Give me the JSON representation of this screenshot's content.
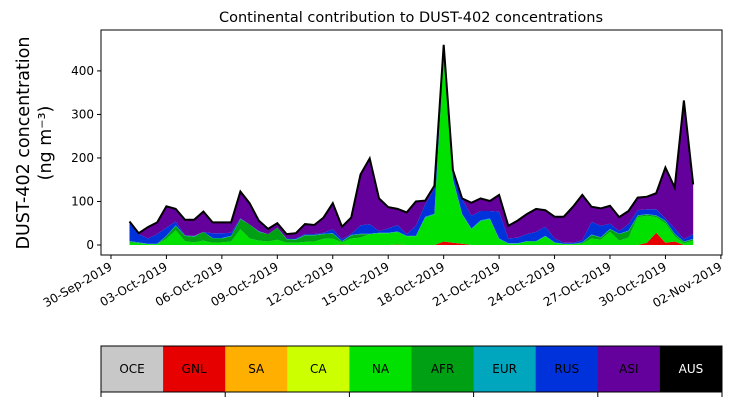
{
  "chart_data": {
    "type": "area",
    "stacked": true,
    "title": "Continental contribution to DUST-402 concentrations",
    "ylabel_line1": "DUST-402 concentration",
    "ylabel_line2": "(ng m⁻³)",
    "xlabel": "",
    "x_start_date": "01-Oct-2019 00:00",
    "x_step_hours": 12,
    "xlim_days_from_30sep": [
      -0.54,
      33.06
    ],
    "ylim": [
      -23,
      494
    ],
    "yticks": [
      0,
      100,
      200,
      300,
      400
    ],
    "xticks": [
      {
        "day": 0,
        "label": "30-Sep-2019"
      },
      {
        "day": 3,
        "label": "03-Oct-2019"
      },
      {
        "day": 6,
        "label": "06-Oct-2019"
      },
      {
        "day": 9,
        "label": "09-Oct-2019"
      },
      {
        "day": 12,
        "label": "12-Oct-2019"
      },
      {
        "day": 15,
        "label": "15-Oct-2019"
      },
      {
        "day": 18,
        "label": "18-Oct-2019"
      },
      {
        "day": 21,
        "label": "21-Oct-2019"
      },
      {
        "day": 24,
        "label": "24-Oct-2019"
      },
      {
        "day": 27,
        "label": "27-Oct-2019"
      },
      {
        "day": 30,
        "label": "30-Oct-2019"
      },
      {
        "day": 33,
        "label": "02-Nov-2019"
      }
    ],
    "series": [
      {
        "name": "OCE",
        "color": "#c8c8c8",
        "label_color": "#000000",
        "values": [
          0,
          0,
          0,
          0,
          0,
          0,
          0,
          0,
          0,
          0,
          0,
          0,
          0,
          0,
          0,
          0,
          0,
          0,
          0,
          0,
          0,
          0,
          0,
          0,
          0,
          0,
          0,
          0,
          0,
          0,
          0,
          0,
          0,
          0,
          0,
          0,
          0,
          0,
          0,
          0,
          0,
          0,
          0,
          0,
          0,
          0,
          0,
          0,
          0,
          0,
          0,
          0,
          0,
          0,
          0,
          0,
          0,
          0,
          0,
          0,
          0,
          0
        ]
      },
      {
        "name": "GNL",
        "color": "#e60000",
        "label_color": "#000000",
        "values": [
          0,
          0,
          0,
          0,
          0,
          0,
          0,
          0,
          0,
          0,
          0,
          0,
          0,
          0,
          0,
          0,
          0,
          0,
          0,
          0,
          0,
          0,
          0,
          1,
          0,
          0,
          0,
          0,
          0,
          1,
          0,
          0,
          0,
          0,
          8,
          5,
          3,
          0,
          0,
          0,
          0,
          0,
          0,
          0,
          0,
          0,
          0,
          0,
          0,
          0,
          0,
          0,
          0,
          0,
          0,
          0,
          5,
          28,
          5,
          8,
          0,
          0
        ]
      },
      {
        "name": "SA",
        "color": "#ffaf00",
        "label_color": "#000000",
        "values": [
          0,
          0,
          0,
          0,
          0,
          0,
          0,
          0,
          0,
          0,
          0,
          0,
          0,
          0,
          0,
          0,
          0,
          0,
          0,
          0,
          0,
          0,
          0,
          0,
          0,
          0,
          0,
          0,
          0,
          0,
          0,
          0,
          0,
          0,
          0,
          0,
          0,
          0,
          0,
          0,
          0,
          0,
          0,
          0,
          0,
          0,
          0,
          0,
          0,
          0,
          0,
          0,
          0,
          0,
          0,
          0,
          0,
          0,
          0,
          0,
          0,
          0
        ]
      },
      {
        "name": "CA",
        "color": "#ccff00",
        "label_color": "#000000",
        "values": [
          0,
          0,
          0,
          0,
          0,
          0,
          0,
          0,
          0,
          0,
          0,
          0,
          0,
          0,
          0,
          0,
          0,
          0,
          0,
          0,
          0,
          0,
          0,
          0,
          0,
          0,
          0,
          0,
          0,
          0,
          0,
          0,
          0,
          0,
          0,
          0,
          0,
          0,
          0,
          0,
          0,
          0,
          0,
          0,
          0,
          0,
          0,
          0,
          0,
          0,
          0,
          0,
          0,
          0,
          0,
          0,
          0,
          0,
          0,
          0,
          0,
          0
        ]
      },
      {
        "name": "NA",
        "color": "#00e100",
        "label_color": "#000000",
        "values": [
          6,
          4,
          2,
          2,
          14,
          34,
          9,
          6,
          10,
          5,
          6,
          8,
          36,
          15,
          10,
          8,
          12,
          5,
          5,
          7,
          8,
          14,
          15,
          5,
          15,
          17,
          25,
          27,
          27,
          29,
          20,
          20,
          63,
          70,
          432,
          145,
          67,
          36,
          55,
          59,
          13,
          3,
          3,
          8,
          8,
          20,
          5,
          2,
          2,
          3,
          15,
          12,
          30,
          10,
          17,
          64,
          62,
          36,
          45,
          12,
          4,
          10
        ]
      },
      {
        "name": "AFR",
        "color": "#00a014",
        "label_color": "#000000",
        "values": [
          2,
          1,
          0,
          0,
          6,
          10,
          12,
          13,
          20,
          10,
          9,
          12,
          23,
          32,
          20,
          17,
          28,
          8,
          7,
          15,
          14,
          11,
          11,
          2,
          7,
          8,
          0,
          0,
          0,
          0,
          0,
          0,
          0,
          0,
          0,
          0,
          0,
          0,
          0,
          0,
          0,
          0,
          0,
          0,
          0,
          0,
          0,
          0,
          0,
          2,
          8,
          5,
          6,
          15,
          15,
          3,
          3,
          3,
          5,
          5,
          3,
          3
        ]
      },
      {
        "name": "EUR",
        "color": "#00a5be",
        "label_color": "#000000",
        "values": [
          1,
          1,
          1,
          1,
          1,
          1,
          1,
          1,
          0,
          1,
          1,
          1,
          1,
          0,
          1,
          0,
          0,
          1,
          1,
          1,
          1,
          1,
          1,
          1,
          1,
          1,
          1,
          1,
          1,
          1,
          1,
          1,
          2,
          2,
          2,
          2,
          2,
          2,
          2,
          2,
          2,
          1,
          1,
          1,
          1,
          1,
          1,
          1,
          1,
          1,
          1,
          1,
          1,
          1,
          1,
          1,
          1,
          1,
          1,
          1,
          1,
          1
        ]
      },
      {
        "name": "RUS",
        "color": "#0032dc",
        "label_color": "#000000",
        "values": [
          45,
          19,
          12,
          22,
          19,
          9,
          0,
          1,
          0,
          11,
          11,
          7,
          1,
          0,
          1,
          0,
          0,
          1,
          2,
          2,
          2,
          2,
          9,
          4,
          2,
          19,
          22,
          4,
          10,
          15,
          4,
          23,
          28,
          58,
          8,
          13,
          33,
          29,
          21,
          17,
          61,
          11,
          13,
          16,
          21,
          21,
          9,
          2,
          2,
          5,
          29,
          26,
          12,
          6,
          15,
          12,
          11,
          14,
          5,
          12,
          5,
          11
        ]
      },
      {
        "name": "ASI",
        "color": "#64009b",
        "label_color": "#000000",
        "values": [
          0,
          2,
          26,
          27,
          49,
          29,
          36,
          37,
          47,
          25,
          25,
          24,
          62,
          49,
          24,
          12,
          10,
          10,
          12,
          23,
          21,
          35,
          60,
          29,
          38,
          117,
          151,
          75,
          49,
          37,
          50,
          56,
          9,
          6,
          10,
          7,
          2,
          30,
          29,
          23,
          39,
          29,
          39,
          46,
          53,
          38,
          50,
          60,
          83,
          104,
          35,
          40,
          41,
          32,
          30,
          29,
          29,
          37,
          117,
          94,
          319,
          114
        ]
      },
      {
        "name": "AUS",
        "color": "#000000",
        "label_color": "#ffffff",
        "values": [
          0,
          0,
          0,
          0,
          0,
          0,
          0,
          0,
          0,
          0,
          0,
          0,
          0,
          0,
          0,
          0,
          0,
          0,
          0,
          0,
          0,
          0,
          0,
          0,
          0,
          0,
          0,
          0,
          0,
          0,
          0,
          0,
          0,
          0,
          0,
          0,
          0,
          0,
          0,
          0,
          0,
          0,
          0,
          0,
          0,
          0,
          0,
          0,
          0,
          0,
          0,
          0,
          0,
          0,
          0,
          0,
          0,
          0,
          0,
          0,
          0,
          0
        ]
      }
    ],
    "total_line_color": "#000000",
    "legend": "colorbar-bottom",
    "grid": false
  }
}
